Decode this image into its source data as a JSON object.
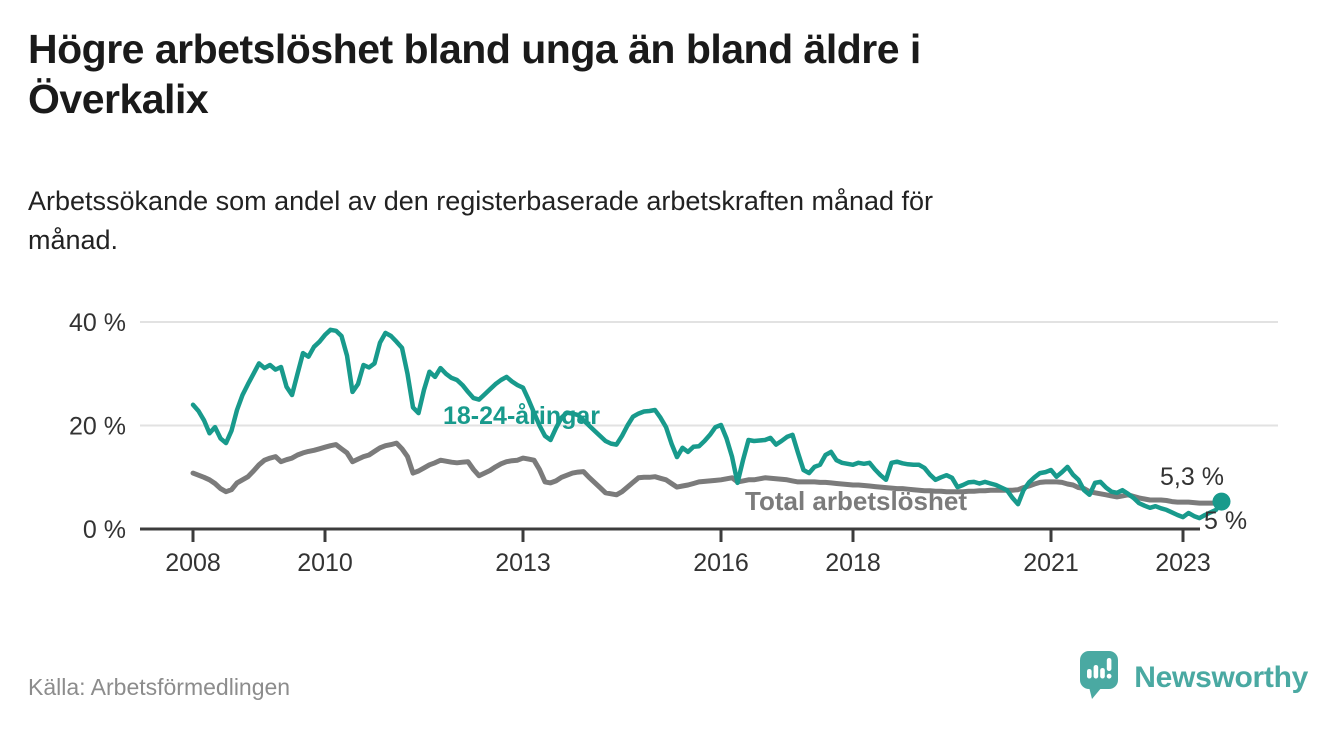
{
  "title": "Högre arbetslöshet bland unga än bland äldre i\nÖverkalix",
  "subtitle": "Arbetssökande som andel av den registerbaserade arbetskraften månad för\nmånad.",
  "source": "Källa: Arbetsförmedlingen",
  "logo": {
    "text": "Newsworthy",
    "color": "#4aa9a2",
    "icon": "bar-chart-speech-bubble"
  },
  "chart_data": {
    "type": "line",
    "x_unit": "month",
    "x_months_start": "2008-01",
    "x_months_end": "2023-08",
    "x_start_year": 2008,
    "x_ticks": [
      2008,
      2010,
      2013,
      2016,
      2018,
      2021,
      2023
    ],
    "y_ticks": [
      {
        "value": 0,
        "label": "0 %"
      },
      {
        "value": 20,
        "label": "20 %"
      },
      {
        "value": 40,
        "label": "40 %"
      }
    ],
    "ylim": [
      0,
      43
    ],
    "grid": "horizontal",
    "legend_position": "inline-labels",
    "colors": {
      "axis": "#3c3c3c",
      "axis_label": "#333333",
      "gridline": "#e2e2e2"
    },
    "series": [
      {
        "name": "Total arbetslöshet",
        "color": "#7b7b7b",
        "width": 5,
        "end_label": "5 %",
        "end_dot": false,
        "values": [
          10.8,
          10.4,
          10.0,
          9.5,
          8.8,
          7.8,
          7.2,
          7.6,
          8.9,
          9.5,
          10.1,
          11.2,
          12.4,
          13.3,
          13.7,
          14.0,
          13.0,
          13.4,
          13.7,
          14.3,
          14.7,
          15.0,
          15.2,
          15.5,
          15.8,
          16.1,
          16.3,
          15.5,
          14.7,
          13.0,
          13.5,
          14.0,
          14.3,
          15.0,
          15.7,
          16.1,
          16.3,
          16.6,
          15.5,
          14.0,
          10.8,
          11.2,
          11.8,
          12.4,
          12.8,
          13.3,
          13.1,
          12.9,
          12.8,
          12.9,
          13.0,
          11.5,
          10.3,
          10.8,
          11.3,
          12.0,
          12.6,
          13.0,
          13.2,
          13.3,
          13.7,
          13.5,
          13.3,
          11.5,
          9.1,
          8.9,
          9.3,
          10.0,
          10.4,
          10.8,
          11.0,
          11.1,
          10.0,
          9.0,
          8.0,
          7.0,
          6.8,
          6.6,
          7.2,
          8.1,
          9.0,
          9.9,
          10.0,
          10.0,
          10.1,
          9.8,
          9.5,
          8.8,
          8.1,
          8.3,
          8.5,
          8.8,
          9.1,
          9.2,
          9.3,
          9.4,
          9.5,
          9.7,
          9.9,
          9.1,
          9.3,
          9.5,
          9.5,
          9.7,
          9.9,
          9.8,
          9.7,
          9.6,
          9.5,
          9.3,
          9.1,
          9.1,
          9.1,
          9.1,
          9.0,
          9.0,
          8.9,
          8.8,
          8.7,
          8.6,
          8.5,
          8.5,
          8.4,
          8.3,
          8.2,
          8.1,
          8.0,
          7.9,
          7.8,
          7.8,
          7.7,
          7.6,
          7.5,
          7.4,
          7.4,
          7.3,
          7.3,
          7.2,
          7.2,
          7.2,
          7.2,
          7.3,
          7.3,
          7.4,
          7.4,
          7.5,
          7.5,
          7.5,
          7.5,
          7.5,
          7.6,
          8.0,
          8.3,
          8.7,
          9.0,
          9.1,
          9.1,
          9.1,
          9.0,
          8.7,
          8.5,
          8.0,
          7.8,
          7.2,
          7.0,
          6.8,
          6.6,
          6.4,
          6.2,
          6.4,
          6.6,
          6.3,
          6.0,
          5.8,
          5.6,
          5.6,
          5.6,
          5.5,
          5.3,
          5.2,
          5.2,
          5.2,
          5.1,
          5.0,
          5.0,
          5.0,
          5.0,
          5.0
        ]
      },
      {
        "name": "18-24-åringar",
        "color": "#189a8c",
        "width": 4.5,
        "end_label": "5,3 %",
        "end_dot": true,
        "values": [
          24.0,
          22.8,
          21.0,
          18.5,
          19.7,
          17.5,
          16.6,
          19.0,
          23.0,
          25.9,
          28.0,
          30.0,
          32.0,
          31.1,
          31.7,
          30.8,
          31.3,
          27.5,
          25.9,
          30.0,
          34.0,
          33.3,
          35.2,
          36.2,
          37.5,
          38.5,
          38.3,
          37.3,
          33.5,
          26.5,
          28.0,
          31.7,
          31.2,
          32.0,
          36.0,
          37.9,
          37.3,
          36.2,
          35.0,
          30.0,
          23.5,
          22.4,
          26.9,
          30.4,
          29.4,
          31.1,
          30.0,
          29.2,
          28.8,
          27.8,
          26.5,
          25.3,
          25.0,
          26.0,
          27.0,
          28.0,
          28.8,
          29.4,
          28.5,
          27.8,
          27.3,
          25.0,
          22.5,
          20.0,
          18.0,
          17.2,
          19.5,
          21.5,
          22.5,
          22.3,
          22.0,
          21.0,
          20.0,
          19.0,
          18.0,
          17.0,
          16.5,
          16.3,
          18.0,
          20.0,
          21.7,
          22.3,
          22.7,
          22.8,
          23.0,
          21.5,
          19.7,
          16.5,
          13.9,
          15.7,
          14.9,
          15.9,
          16.0,
          17.0,
          18.2,
          19.7,
          20.1,
          17.5,
          14.0,
          8.9,
          13.3,
          17.2,
          17.0,
          17.1,
          17.2,
          17.6,
          16.3,
          17.0,
          17.8,
          18.2,
          14.7,
          11.4,
          10.8,
          12.0,
          12.4,
          14.3,
          14.9,
          13.3,
          12.8,
          12.6,
          12.4,
          12.8,
          12.6,
          12.8,
          11.5,
          10.4,
          9.5,
          12.8,
          13.0,
          12.7,
          12.5,
          12.4,
          12.4,
          11.8,
          10.5,
          9.5,
          10.0,
          10.4,
          9.9,
          8.1,
          8.5,
          9.0,
          9.1,
          8.8,
          9.1,
          8.8,
          8.5,
          8.0,
          7.5,
          6.0,
          4.8,
          7.5,
          9.0,
          10.0,
          10.8,
          11.0,
          11.4,
          10.1,
          11.0,
          12.0,
          10.5,
          9.5,
          7.5,
          6.6,
          8.9,
          9.1,
          8.0,
          7.2,
          7.0,
          7.5,
          6.8,
          6.0,
          5.0,
          4.5,
          4.1,
          4.4,
          4.0,
          3.7,
          3.2,
          2.7,
          2.3,
          3.1,
          2.5,
          2.1,
          2.7,
          3.2,
          3.7,
          5.3
        ]
      }
    ]
  }
}
